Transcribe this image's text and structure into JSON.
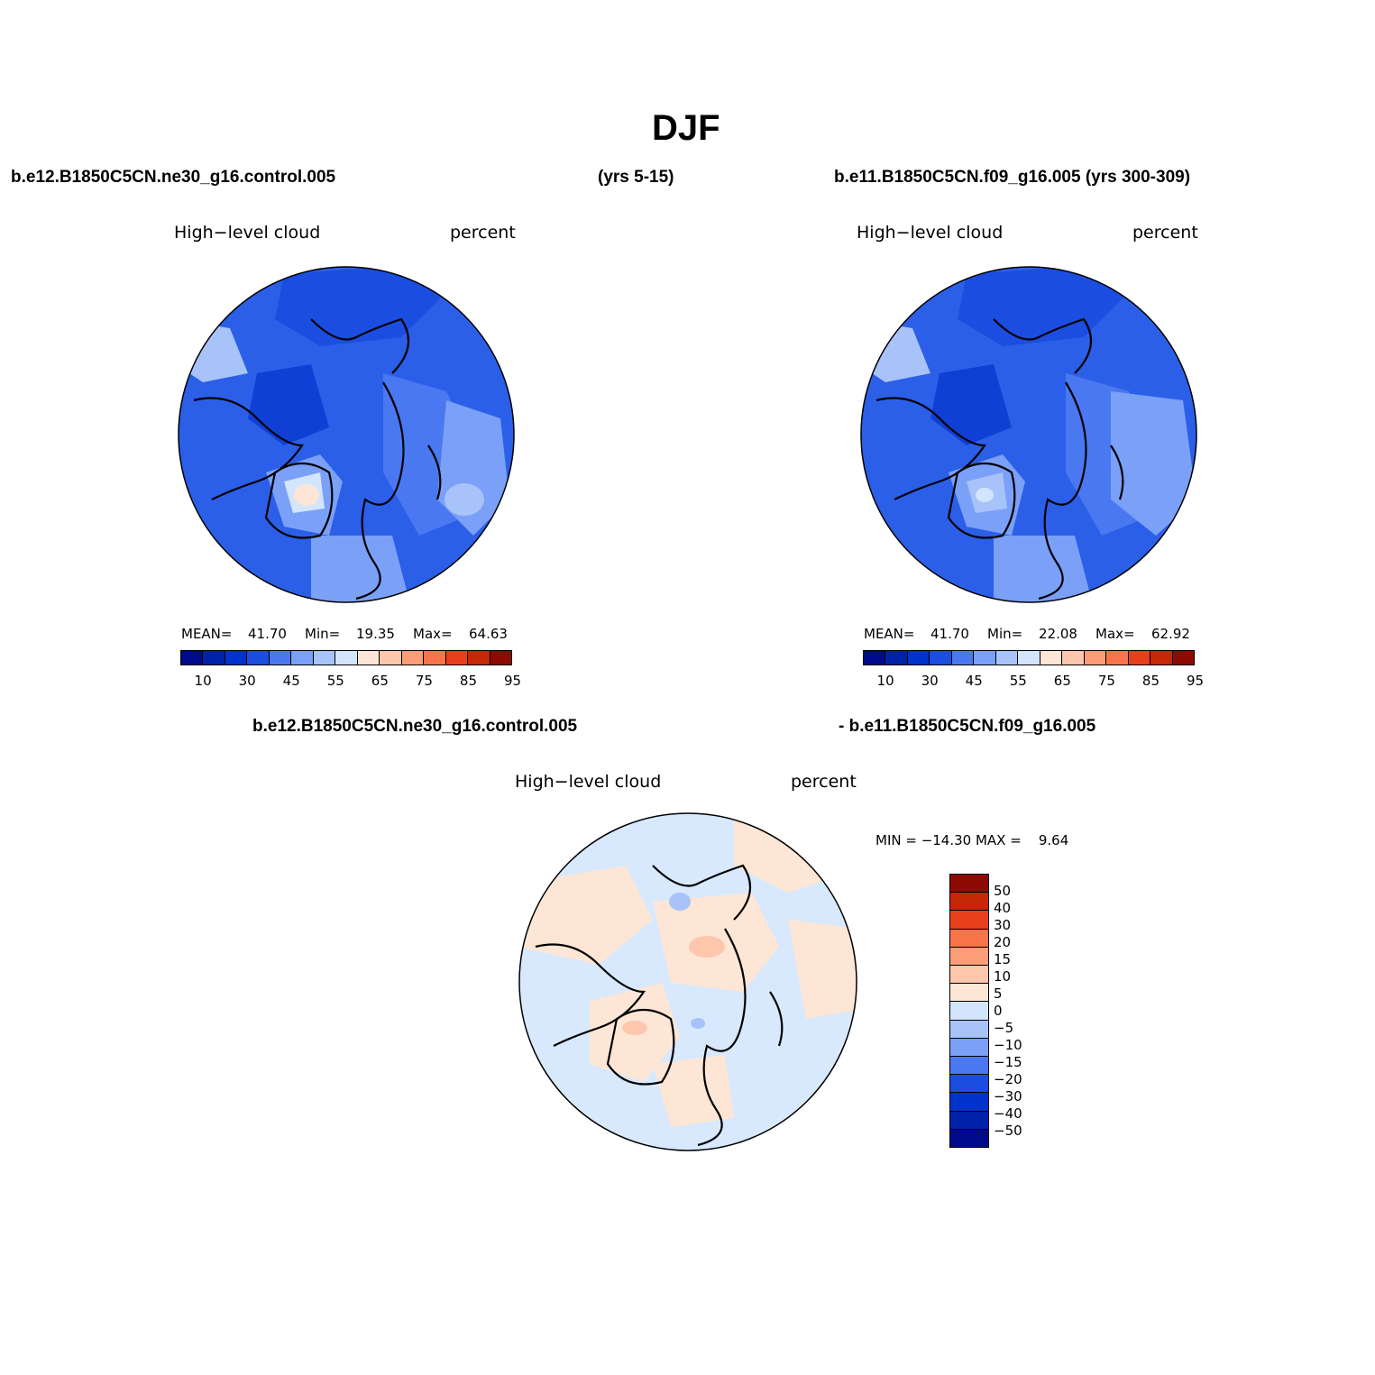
{
  "title": "DJF",
  "cases": {
    "left": "b.e12.B1850C5CN.ne30_g16.control.005",
    "left_years": "(yrs 5-15)",
    "right": "b.e11.B1850C5CN.f09_g16.005 (yrs 300-309)",
    "diff_left": "b.e12.B1850C5CN.ne30_g16.control.005",
    "diff_right": "- b.e11.B1850C5CN.f09_g16.005"
  },
  "panels": [
    {
      "variable": "High−level cloud",
      "units": "percent",
      "stats": {
        "mean_label": "MEAN=",
        "mean": "41.70",
        "min_label": "Min=",
        "min": "19.35",
        "max_label": "Max=",
        "max": "64.63"
      }
    },
    {
      "variable": "High−level cloud",
      "units": "percent",
      "stats": {
        "mean_label": "MEAN=",
        "mean": "41.70",
        "min_label": "Min=",
        "min": "22.08",
        "max_label": "Max=",
        "max": "62.92"
      }
    }
  ],
  "diff_panel": {
    "variable": "High−level cloud",
    "units": "percent",
    "minmax": "MIN = −14.30 MAX =    9.64"
  },
  "colorbar": {
    "colors": [
      "#000a8c",
      "#0022a8",
      "#0033cc",
      "#1b4ee0",
      "#4a78f0",
      "#7aa0f8",
      "#a8c3fa",
      "#d2e5fc",
      "#fde6d5",
      "#fcc7ac",
      "#fb9d76",
      "#f9744a",
      "#e8401a",
      "#c42806",
      "#8e0a02"
    ],
    "tick_labels": [
      "10",
      "30",
      "45",
      "55",
      "65",
      "75",
      "85",
      "95"
    ]
  },
  "diff_colorbar": {
    "colors": [
      "#000a8c",
      "#0022a8",
      "#0033cc",
      "#1b4ee0",
      "#4a78f0",
      "#7aa0f8",
      "#a8c3fa",
      "#d2e5fc",
      "#fde6d5",
      "#fcc7ac",
      "#fb9d76",
      "#f9744a",
      "#e8401a",
      "#c42806",
      "#8e0a02"
    ],
    "tick_labels": [
      "−50",
      "−40",
      "−30",
      "−20",
      "−15",
      "−10",
      "−5",
      "0",
      "5",
      "10",
      "15",
      "20",
      "30",
      "40",
      "50"
    ]
  }
}
